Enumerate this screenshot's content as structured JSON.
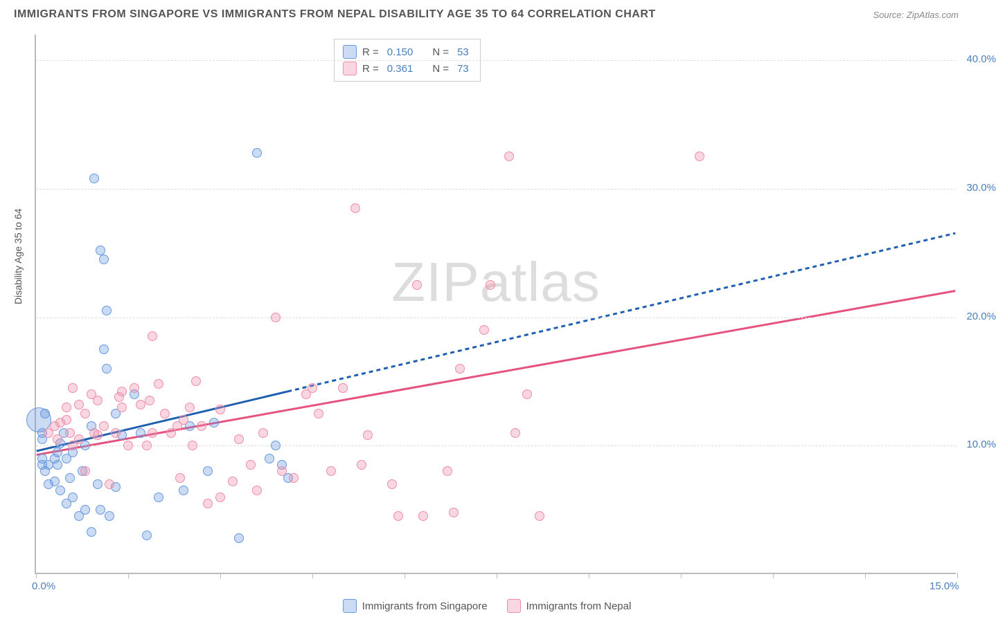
{
  "title": "IMMIGRANTS FROM SINGAPORE VS IMMIGRANTS FROM NEPAL DISABILITY AGE 35 TO 64 CORRELATION CHART",
  "source": "Source: ZipAtlas.com",
  "ylabel": "Disability Age 35 to 64",
  "watermark": {
    "zip": "ZIP",
    "atlas": "atlas"
  },
  "chart": {
    "type": "scatter",
    "background": "#ffffff",
    "grid_color": "#dddddd",
    "axis_color": "#bbbbbb",
    "xlim": [
      0,
      15
    ],
    "ylim": [
      0,
      42
    ],
    "xticks": [
      0,
      1.5,
      3.0,
      4.5,
      6.0,
      7.5,
      9.0,
      10.5,
      12.0,
      13.5,
      15.0
    ],
    "yticks": [
      10,
      20,
      30,
      40
    ],
    "x_axis_labels": [
      {
        "value": 0,
        "text": "0.0%"
      },
      {
        "value": 15,
        "text": "15.0%"
      }
    ],
    "y_axis_labels": [
      {
        "value": 10,
        "text": "10.0%"
      },
      {
        "value": 20,
        "text": "20.0%"
      },
      {
        "value": 30,
        "text": "30.0%"
      },
      {
        "value": 40,
        "text": "40.0%"
      }
    ],
    "axis_label_color": "#4a7ebb",
    "axis_label_fontsize": 15
  },
  "series": [
    {
      "name": "Immigrants from Singapore",
      "short": "singapore",
      "marker_fill": "rgba(102,153,222,0.35)",
      "marker_stroke": "#6699de",
      "marker_radius": 7,
      "trend_color": "#1f5fb0",
      "trend_width": 3,
      "trend_dash": "6 5",
      "trend": {
        "x1": 0.0,
        "y1": 9.5,
        "x2": 15.0,
        "y2": 26.5
      },
      "trend_solid_until_x": 4.1,
      "r": "0.150",
      "n": "53",
      "points": [
        {
          "x": 0.05,
          "y": 12.0,
          "r": 18
        },
        {
          "x": 0.1,
          "y": 11.0
        },
        {
          "x": 0.1,
          "y": 10.5
        },
        {
          "x": 0.15,
          "y": 12.5
        },
        {
          "x": 0.1,
          "y": 9.0
        },
        {
          "x": 0.1,
          "y": 8.5
        },
        {
          "x": 0.15,
          "y": 8.0
        },
        {
          "x": 0.2,
          "y": 8.5
        },
        {
          "x": 0.2,
          "y": 7.0
        },
        {
          "x": 0.3,
          "y": 7.2
        },
        {
          "x": 0.3,
          "y": 9.0
        },
        {
          "x": 0.35,
          "y": 9.5
        },
        {
          "x": 0.35,
          "y": 8.5
        },
        {
          "x": 0.4,
          "y": 6.5
        },
        {
          "x": 0.4,
          "y": 10.2
        },
        {
          "x": 0.45,
          "y": 11.0
        },
        {
          "x": 0.5,
          "y": 5.5
        },
        {
          "x": 0.5,
          "y": 9.0
        },
        {
          "x": 0.55,
          "y": 7.5
        },
        {
          "x": 0.6,
          "y": 6.0
        },
        {
          "x": 0.6,
          "y": 9.5
        },
        {
          "x": 0.7,
          "y": 4.5
        },
        {
          "x": 0.75,
          "y": 8.0
        },
        {
          "x": 0.8,
          "y": 5.0
        },
        {
          "x": 0.8,
          "y": 10.0
        },
        {
          "x": 0.9,
          "y": 3.3
        },
        {
          "x": 0.9,
          "y": 11.5
        },
        {
          "x": 0.95,
          "y": 30.8
        },
        {
          "x": 1.0,
          "y": 7.0
        },
        {
          "x": 1.05,
          "y": 5.0
        },
        {
          "x": 1.05,
          "y": 25.2
        },
        {
          "x": 1.1,
          "y": 24.5
        },
        {
          "x": 1.1,
          "y": 17.5
        },
        {
          "x": 1.15,
          "y": 20.5
        },
        {
          "x": 1.15,
          "y": 16.0
        },
        {
          "x": 1.2,
          "y": 4.5
        },
        {
          "x": 1.3,
          "y": 6.8
        },
        {
          "x": 1.3,
          "y": 12.5
        },
        {
          "x": 1.4,
          "y": 10.8
        },
        {
          "x": 1.6,
          "y": 14.0
        },
        {
          "x": 1.7,
          "y": 11.0
        },
        {
          "x": 1.8,
          "y": 3.0
        },
        {
          "x": 2.0,
          "y": 6.0
        },
        {
          "x": 2.4,
          "y": 6.5
        },
        {
          "x": 2.5,
          "y": 11.5
        },
        {
          "x": 2.8,
          "y": 8.0
        },
        {
          "x": 2.9,
          "y": 11.8
        },
        {
          "x": 3.3,
          "y": 2.8
        },
        {
          "x": 3.6,
          "y": 32.8
        },
        {
          "x": 3.8,
          "y": 9.0
        },
        {
          "x": 3.9,
          "y": 10.0
        },
        {
          "x": 4.0,
          "y": 8.5
        },
        {
          "x": 4.1,
          "y": 7.5
        }
      ]
    },
    {
      "name": "Immigrants from Nepal",
      "short": "nepal",
      "marker_fill": "rgba(238,140,170,0.35)",
      "marker_stroke": "#ee8caa",
      "marker_radius": 7,
      "trend_color": "#e6527e",
      "trend_width": 3,
      "trend_dash": "",
      "trend": {
        "x1": 0.0,
        "y1": 9.2,
        "x2": 15.0,
        "y2": 22.0
      },
      "r": "0.361",
      "n": "73",
      "points": [
        {
          "x": 0.2,
          "y": 11.0
        },
        {
          "x": 0.3,
          "y": 11.5
        },
        {
          "x": 0.35,
          "y": 10.5
        },
        {
          "x": 0.4,
          "y": 11.8
        },
        {
          "x": 0.5,
          "y": 12.0
        },
        {
          "x": 0.5,
          "y": 13.0
        },
        {
          "x": 0.55,
          "y": 11.0
        },
        {
          "x": 0.6,
          "y": 10.0
        },
        {
          "x": 0.6,
          "y": 14.5
        },
        {
          "x": 0.7,
          "y": 13.2
        },
        {
          "x": 0.7,
          "y": 10.5
        },
        {
          "x": 0.8,
          "y": 12.5
        },
        {
          "x": 0.8,
          "y": 8.0
        },
        {
          "x": 0.9,
          "y": 14.0
        },
        {
          "x": 0.95,
          "y": 11.0
        },
        {
          "x": 1.0,
          "y": 13.5
        },
        {
          "x": 1.0,
          "y": 10.8
        },
        {
          "x": 1.1,
          "y": 11.5
        },
        {
          "x": 1.2,
          "y": 7.0
        },
        {
          "x": 1.3,
          "y": 11.0
        },
        {
          "x": 1.35,
          "y": 13.8
        },
        {
          "x": 1.4,
          "y": 14.2
        },
        {
          "x": 1.4,
          "y": 13.0
        },
        {
          "x": 1.5,
          "y": 10.0
        },
        {
          "x": 1.6,
          "y": 14.5
        },
        {
          "x": 1.7,
          "y": 13.2
        },
        {
          "x": 1.8,
          "y": 10.0
        },
        {
          "x": 1.85,
          "y": 13.5
        },
        {
          "x": 1.9,
          "y": 11.0
        },
        {
          "x": 1.9,
          "y": 18.5
        },
        {
          "x": 2.0,
          "y": 14.8
        },
        {
          "x": 2.1,
          "y": 12.5
        },
        {
          "x": 2.2,
          "y": 11.0
        },
        {
          "x": 2.3,
          "y": 11.5
        },
        {
          "x": 2.35,
          "y": 7.5
        },
        {
          "x": 2.4,
          "y": 12.0
        },
        {
          "x": 2.5,
          "y": 13.0
        },
        {
          "x": 2.55,
          "y": 10.0
        },
        {
          "x": 2.6,
          "y": 15.0
        },
        {
          "x": 2.7,
          "y": 11.5
        },
        {
          "x": 2.8,
          "y": 5.5
        },
        {
          "x": 3.0,
          "y": 6.0
        },
        {
          "x": 3.0,
          "y": 12.8
        },
        {
          "x": 3.2,
          "y": 7.2
        },
        {
          "x": 3.3,
          "y": 10.5
        },
        {
          "x": 3.5,
          "y": 8.5
        },
        {
          "x": 3.6,
          "y": 6.5
        },
        {
          "x": 3.7,
          "y": 11.0
        },
        {
          "x": 3.9,
          "y": 20.0
        },
        {
          "x": 4.0,
          "y": 8.0
        },
        {
          "x": 4.2,
          "y": 7.5
        },
        {
          "x": 4.4,
          "y": 14.0
        },
        {
          "x": 4.5,
          "y": 14.5
        },
        {
          "x": 4.6,
          "y": 12.5
        },
        {
          "x": 4.8,
          "y": 8.0
        },
        {
          "x": 5.0,
          "y": 14.5
        },
        {
          "x": 5.2,
          "y": 28.5
        },
        {
          "x": 5.3,
          "y": 8.5
        },
        {
          "x": 5.4,
          "y": 10.8
        },
        {
          "x": 5.8,
          "y": 7.0
        },
        {
          "x": 5.9,
          "y": 4.5
        },
        {
          "x": 6.2,
          "y": 22.5
        },
        {
          "x": 6.3,
          "y": 4.5
        },
        {
          "x": 6.7,
          "y": 8.0
        },
        {
          "x": 6.8,
          "y": 4.8
        },
        {
          "x": 6.9,
          "y": 16.0
        },
        {
          "x": 7.3,
          "y": 19.0
        },
        {
          "x": 7.4,
          "y": 22.5
        },
        {
          "x": 7.7,
          "y": 32.5
        },
        {
          "x": 7.8,
          "y": 11.0
        },
        {
          "x": 8.0,
          "y": 14.0
        },
        {
          "x": 8.2,
          "y": 4.5
        },
        {
          "x": 10.8,
          "y": 32.5
        }
      ]
    }
  ],
  "legend_top": {
    "rows": [
      {
        "swatch_fill": "rgba(102,153,222,0.35)",
        "swatch_stroke": "#6699de",
        "r_label": "R =",
        "r_val": "0.150",
        "n_label": "N =",
        "n_val": "53"
      },
      {
        "swatch_fill": "rgba(238,140,170,0.35)",
        "swatch_stroke": "#ee8caa",
        "r_label": "R =",
        "r_val": "0.361",
        "n_label": "N =",
        "n_val": "73"
      }
    ]
  },
  "legend_bottom": [
    {
      "swatch_fill": "rgba(102,153,222,0.35)",
      "swatch_stroke": "#6699de",
      "label": "Immigrants from Singapore"
    },
    {
      "swatch_fill": "rgba(238,140,170,0.35)",
      "swatch_stroke": "#ee8caa",
      "label": "Immigrants from Nepal"
    }
  ]
}
